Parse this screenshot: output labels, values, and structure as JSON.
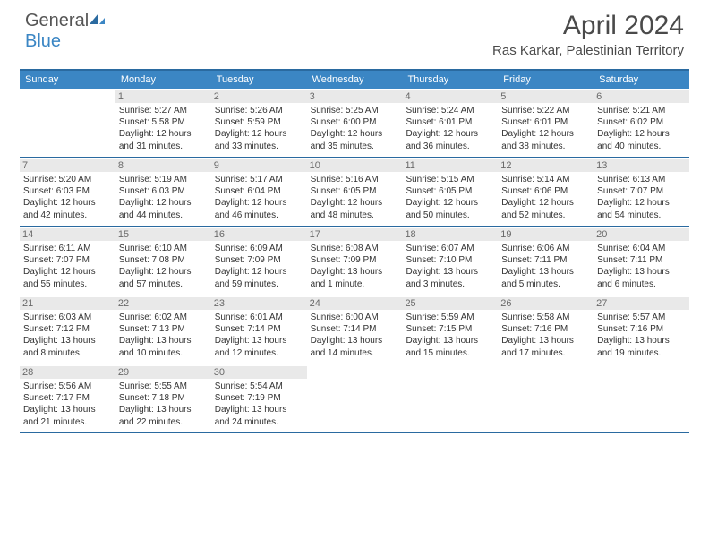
{
  "logo": {
    "text1": "General",
    "text2": "Blue"
  },
  "title": "April 2024",
  "subtitle": "Ras Karkar, Palestinian Territory",
  "colors": {
    "header_bg": "#3b86c4",
    "border": "#2a6aa0",
    "daynum_bg": "#e9e9e9",
    "text": "#333333",
    "page_bg": "#ffffff"
  },
  "dow": [
    "Sunday",
    "Monday",
    "Tuesday",
    "Wednesday",
    "Thursday",
    "Friday",
    "Saturday"
  ],
  "weeks": [
    [
      {
        "n": "",
        "sr": "",
        "ss": "",
        "d1": "",
        "d2": "",
        "empty": true
      },
      {
        "n": "1",
        "sr": "Sunrise: 5:27 AM",
        "ss": "Sunset: 5:58 PM",
        "d1": "Daylight: 12 hours",
        "d2": "and 31 minutes."
      },
      {
        "n": "2",
        "sr": "Sunrise: 5:26 AM",
        "ss": "Sunset: 5:59 PM",
        "d1": "Daylight: 12 hours",
        "d2": "and 33 minutes."
      },
      {
        "n": "3",
        "sr": "Sunrise: 5:25 AM",
        "ss": "Sunset: 6:00 PM",
        "d1": "Daylight: 12 hours",
        "d2": "and 35 minutes."
      },
      {
        "n": "4",
        "sr": "Sunrise: 5:24 AM",
        "ss": "Sunset: 6:01 PM",
        "d1": "Daylight: 12 hours",
        "d2": "and 36 minutes."
      },
      {
        "n": "5",
        "sr": "Sunrise: 5:22 AM",
        "ss": "Sunset: 6:01 PM",
        "d1": "Daylight: 12 hours",
        "d2": "and 38 minutes."
      },
      {
        "n": "6",
        "sr": "Sunrise: 5:21 AM",
        "ss": "Sunset: 6:02 PM",
        "d1": "Daylight: 12 hours",
        "d2": "and 40 minutes."
      }
    ],
    [
      {
        "n": "7",
        "sr": "Sunrise: 5:20 AM",
        "ss": "Sunset: 6:03 PM",
        "d1": "Daylight: 12 hours",
        "d2": "and 42 minutes."
      },
      {
        "n": "8",
        "sr": "Sunrise: 5:19 AM",
        "ss": "Sunset: 6:03 PM",
        "d1": "Daylight: 12 hours",
        "d2": "and 44 minutes."
      },
      {
        "n": "9",
        "sr": "Sunrise: 5:17 AM",
        "ss": "Sunset: 6:04 PM",
        "d1": "Daylight: 12 hours",
        "d2": "and 46 minutes."
      },
      {
        "n": "10",
        "sr": "Sunrise: 5:16 AM",
        "ss": "Sunset: 6:05 PM",
        "d1": "Daylight: 12 hours",
        "d2": "and 48 minutes."
      },
      {
        "n": "11",
        "sr": "Sunrise: 5:15 AM",
        "ss": "Sunset: 6:05 PM",
        "d1": "Daylight: 12 hours",
        "d2": "and 50 minutes."
      },
      {
        "n": "12",
        "sr": "Sunrise: 5:14 AM",
        "ss": "Sunset: 6:06 PM",
        "d1": "Daylight: 12 hours",
        "d2": "and 52 minutes."
      },
      {
        "n": "13",
        "sr": "Sunrise: 6:13 AM",
        "ss": "Sunset: 7:07 PM",
        "d1": "Daylight: 12 hours",
        "d2": "and 54 minutes."
      }
    ],
    [
      {
        "n": "14",
        "sr": "Sunrise: 6:11 AM",
        "ss": "Sunset: 7:07 PM",
        "d1": "Daylight: 12 hours",
        "d2": "and 55 minutes."
      },
      {
        "n": "15",
        "sr": "Sunrise: 6:10 AM",
        "ss": "Sunset: 7:08 PM",
        "d1": "Daylight: 12 hours",
        "d2": "and 57 minutes."
      },
      {
        "n": "16",
        "sr": "Sunrise: 6:09 AM",
        "ss": "Sunset: 7:09 PM",
        "d1": "Daylight: 12 hours",
        "d2": "and 59 minutes."
      },
      {
        "n": "17",
        "sr": "Sunrise: 6:08 AM",
        "ss": "Sunset: 7:09 PM",
        "d1": "Daylight: 13 hours",
        "d2": "and 1 minute."
      },
      {
        "n": "18",
        "sr": "Sunrise: 6:07 AM",
        "ss": "Sunset: 7:10 PM",
        "d1": "Daylight: 13 hours",
        "d2": "and 3 minutes."
      },
      {
        "n": "19",
        "sr": "Sunrise: 6:06 AM",
        "ss": "Sunset: 7:11 PM",
        "d1": "Daylight: 13 hours",
        "d2": "and 5 minutes."
      },
      {
        "n": "20",
        "sr": "Sunrise: 6:04 AM",
        "ss": "Sunset: 7:11 PM",
        "d1": "Daylight: 13 hours",
        "d2": "and 6 minutes."
      }
    ],
    [
      {
        "n": "21",
        "sr": "Sunrise: 6:03 AM",
        "ss": "Sunset: 7:12 PM",
        "d1": "Daylight: 13 hours",
        "d2": "and 8 minutes."
      },
      {
        "n": "22",
        "sr": "Sunrise: 6:02 AM",
        "ss": "Sunset: 7:13 PM",
        "d1": "Daylight: 13 hours",
        "d2": "and 10 minutes."
      },
      {
        "n": "23",
        "sr": "Sunrise: 6:01 AM",
        "ss": "Sunset: 7:14 PM",
        "d1": "Daylight: 13 hours",
        "d2": "and 12 minutes."
      },
      {
        "n": "24",
        "sr": "Sunrise: 6:00 AM",
        "ss": "Sunset: 7:14 PM",
        "d1": "Daylight: 13 hours",
        "d2": "and 14 minutes."
      },
      {
        "n": "25",
        "sr": "Sunrise: 5:59 AM",
        "ss": "Sunset: 7:15 PM",
        "d1": "Daylight: 13 hours",
        "d2": "and 15 minutes."
      },
      {
        "n": "26",
        "sr": "Sunrise: 5:58 AM",
        "ss": "Sunset: 7:16 PM",
        "d1": "Daylight: 13 hours",
        "d2": "and 17 minutes."
      },
      {
        "n": "27",
        "sr": "Sunrise: 5:57 AM",
        "ss": "Sunset: 7:16 PM",
        "d1": "Daylight: 13 hours",
        "d2": "and 19 minutes."
      }
    ],
    [
      {
        "n": "28",
        "sr": "Sunrise: 5:56 AM",
        "ss": "Sunset: 7:17 PM",
        "d1": "Daylight: 13 hours",
        "d2": "and 21 minutes."
      },
      {
        "n": "29",
        "sr": "Sunrise: 5:55 AM",
        "ss": "Sunset: 7:18 PM",
        "d1": "Daylight: 13 hours",
        "d2": "and 22 minutes."
      },
      {
        "n": "30",
        "sr": "Sunrise: 5:54 AM",
        "ss": "Sunset: 7:19 PM",
        "d1": "Daylight: 13 hours",
        "d2": "and 24 minutes."
      },
      {
        "n": "",
        "sr": "",
        "ss": "",
        "d1": "",
        "d2": "",
        "empty": true
      },
      {
        "n": "",
        "sr": "",
        "ss": "",
        "d1": "",
        "d2": "",
        "empty": true
      },
      {
        "n": "",
        "sr": "",
        "ss": "",
        "d1": "",
        "d2": "",
        "empty": true
      },
      {
        "n": "",
        "sr": "",
        "ss": "",
        "d1": "",
        "d2": "",
        "empty": true
      }
    ]
  ]
}
